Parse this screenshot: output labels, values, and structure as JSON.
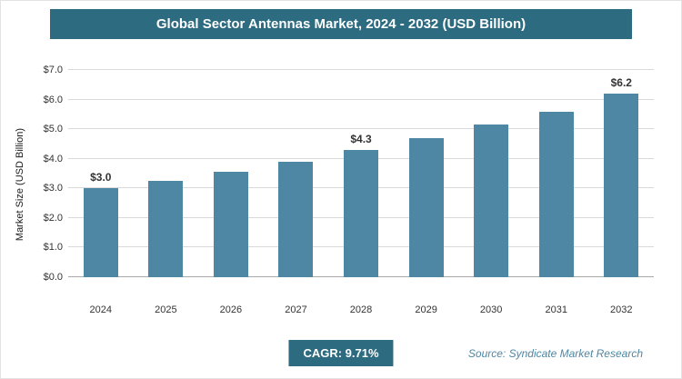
{
  "header": {
    "title": "Global Sector Antennas Market, 2024 - 2032 (USD Billion)"
  },
  "chart_data": {
    "type": "bar",
    "title": "Global Sector Antennas Market, 2024 - 2032 (USD Billion)",
    "categories": [
      "2024",
      "2025",
      "2026",
      "2027",
      "2028",
      "2029",
      "2030",
      "2031",
      "2032"
    ],
    "values": [
      3.0,
      3.25,
      3.55,
      3.9,
      4.3,
      4.7,
      5.15,
      5.6,
      6.2
    ],
    "value_labels": [
      "$3.0",
      null,
      null,
      null,
      "$4.3",
      null,
      null,
      null,
      "$6.2"
    ],
    "xlabel": "",
    "ylabel": "Market Size (USD Billion)",
    "ylim": [
      0,
      7
    ],
    "ytick_step": 1,
    "ytick_labels": [
      "$0.0",
      "$1.0",
      "$2.0",
      "$3.0",
      "$4.0",
      "$5.0",
      "$6.0",
      "$7.0"
    ],
    "grid": true,
    "legend": false,
    "bar_color": "#4e87a3"
  },
  "footer": {
    "cagr_label": "CAGR: 9.71%",
    "source": "Source: Syndicate Market Research"
  },
  "colors": {
    "accent": "#2d6b80",
    "bar": "#4e87a3",
    "grid": "#d9d9d9",
    "text": "#333333"
  }
}
